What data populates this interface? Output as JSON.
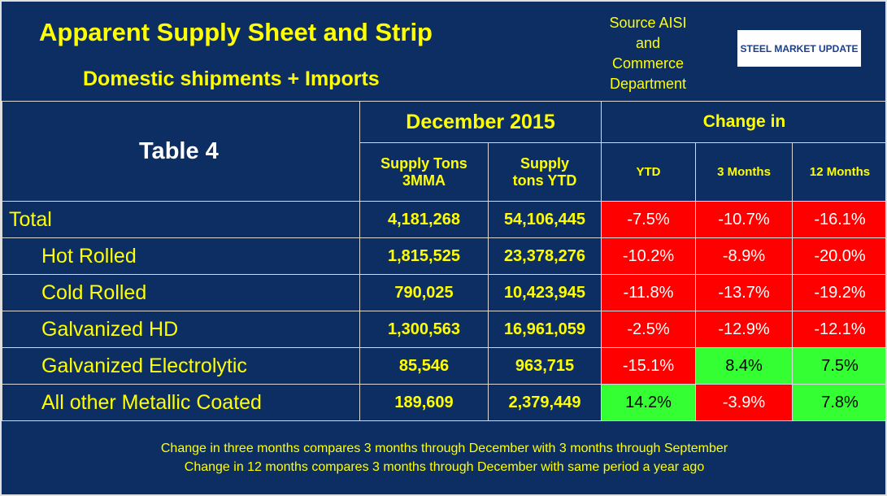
{
  "header": {
    "title": "Apparent Supply Sheet and Strip",
    "subtitle": "Domestic shipments + Imports",
    "source": [
      "Source AISI",
      "and",
      "Commerce",
      "Department"
    ],
    "logo": "STEEL MARKET UPDATE"
  },
  "table": {
    "label": "Table 4",
    "group1": "December 2015",
    "group2": "Change in",
    "columns": [
      "Supply Tons 3MMA",
      "Supply tons YTD",
      "YTD",
      "3 Months",
      "12 Months"
    ],
    "rows": [
      [
        "Total",
        "4,181,268",
        "54,106,445",
        "-7.5%",
        "-10.7%",
        "-16.1%"
      ],
      [
        "Hot Rolled",
        "1,815,525",
        "23,378,276",
        "-10.2%",
        "-8.9%",
        "-20.0%"
      ],
      [
        "Cold Rolled",
        "790,025",
        "10,423,945",
        "-11.8%",
        "-13.7%",
        "-19.2%"
      ],
      [
        "Galvanized HD",
        "1,300,563",
        "16,961,059",
        "-2.5%",
        "-12.9%",
        "-12.1%"
      ],
      [
        "Galvanized Electrolytic",
        "85,546",
        "963,715",
        "-15.1%",
        "8.4%",
        "7.5%"
      ],
      [
        "All other Metallic Coated",
        "189,609",
        "2,379,449",
        "14.2%",
        "-3.9%",
        "7.8%"
      ]
    ]
  },
  "footer": [
    "Change in three months compares 3 months through December with 3 months through September",
    "Change in 12 months compares 3 months through December with same period a year ago"
  ]
}
